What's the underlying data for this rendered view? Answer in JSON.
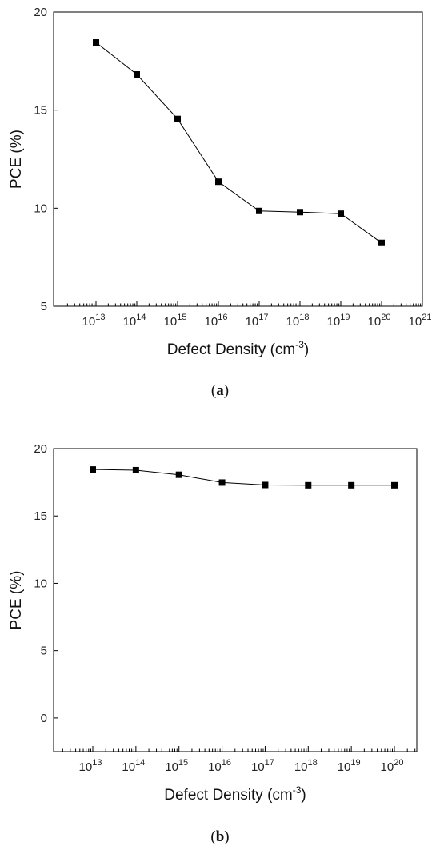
{
  "chart_data": [
    {
      "type": "line",
      "caption_letter": "a",
      "caption_open": "(",
      "caption_close": ")",
      "xlabel": "Defect Density (cm",
      "xlabel_sup": "-3",
      "xlabel_close": ")",
      "ylabel": "PCE (%)",
      "x_scale": "log",
      "x_ticks": [
        "10^13",
        "10^14",
        "10^15",
        "10^16",
        "10^17",
        "10^18",
        "10^19",
        "10^20",
        "10^21"
      ],
      "y_ticks": [
        "5",
        "10",
        "15",
        "20"
      ],
      "ylim": [
        5,
        20
      ],
      "series": [
        {
          "x": [
            10000000000000.0,
            100000000000000.0,
            1000000000000000.0,
            1e+16,
            1e+17,
            1e+18,
            1e+19,
            1e+20
          ],
          "values": [
            18.45,
            16.82,
            14.55,
            11.35,
            9.86,
            9.8,
            9.72,
            8.23
          ]
        }
      ],
      "marker": "square",
      "grid": false
    },
    {
      "type": "line",
      "caption_letter": "b",
      "caption_open": "(",
      "caption_close": ")",
      "xlabel": "Defect Density (cm",
      "xlabel_sup": "-3",
      "xlabel_close": ")",
      "ylabel": "PCE (%)",
      "x_scale": "log",
      "x_ticks": [
        "10^13",
        "10^14",
        "10^15",
        "10^16",
        "10^17",
        "10^18",
        "10^19",
        "10^20"
      ],
      "y_ticks": [
        "0",
        "5",
        "10",
        "15",
        "20"
      ],
      "ylim": [
        -2.5,
        20
      ],
      "series": [
        {
          "x": [
            10000000000000.0,
            100000000000000.0,
            1000000000000000.0,
            1e+16,
            1e+17,
            1e+18,
            1e+19,
            1e+20
          ],
          "values": [
            18.45,
            18.4,
            18.06,
            17.48,
            17.3,
            17.28,
            17.28,
            17.28
          ]
        }
      ],
      "marker": "square",
      "grid": false
    }
  ]
}
